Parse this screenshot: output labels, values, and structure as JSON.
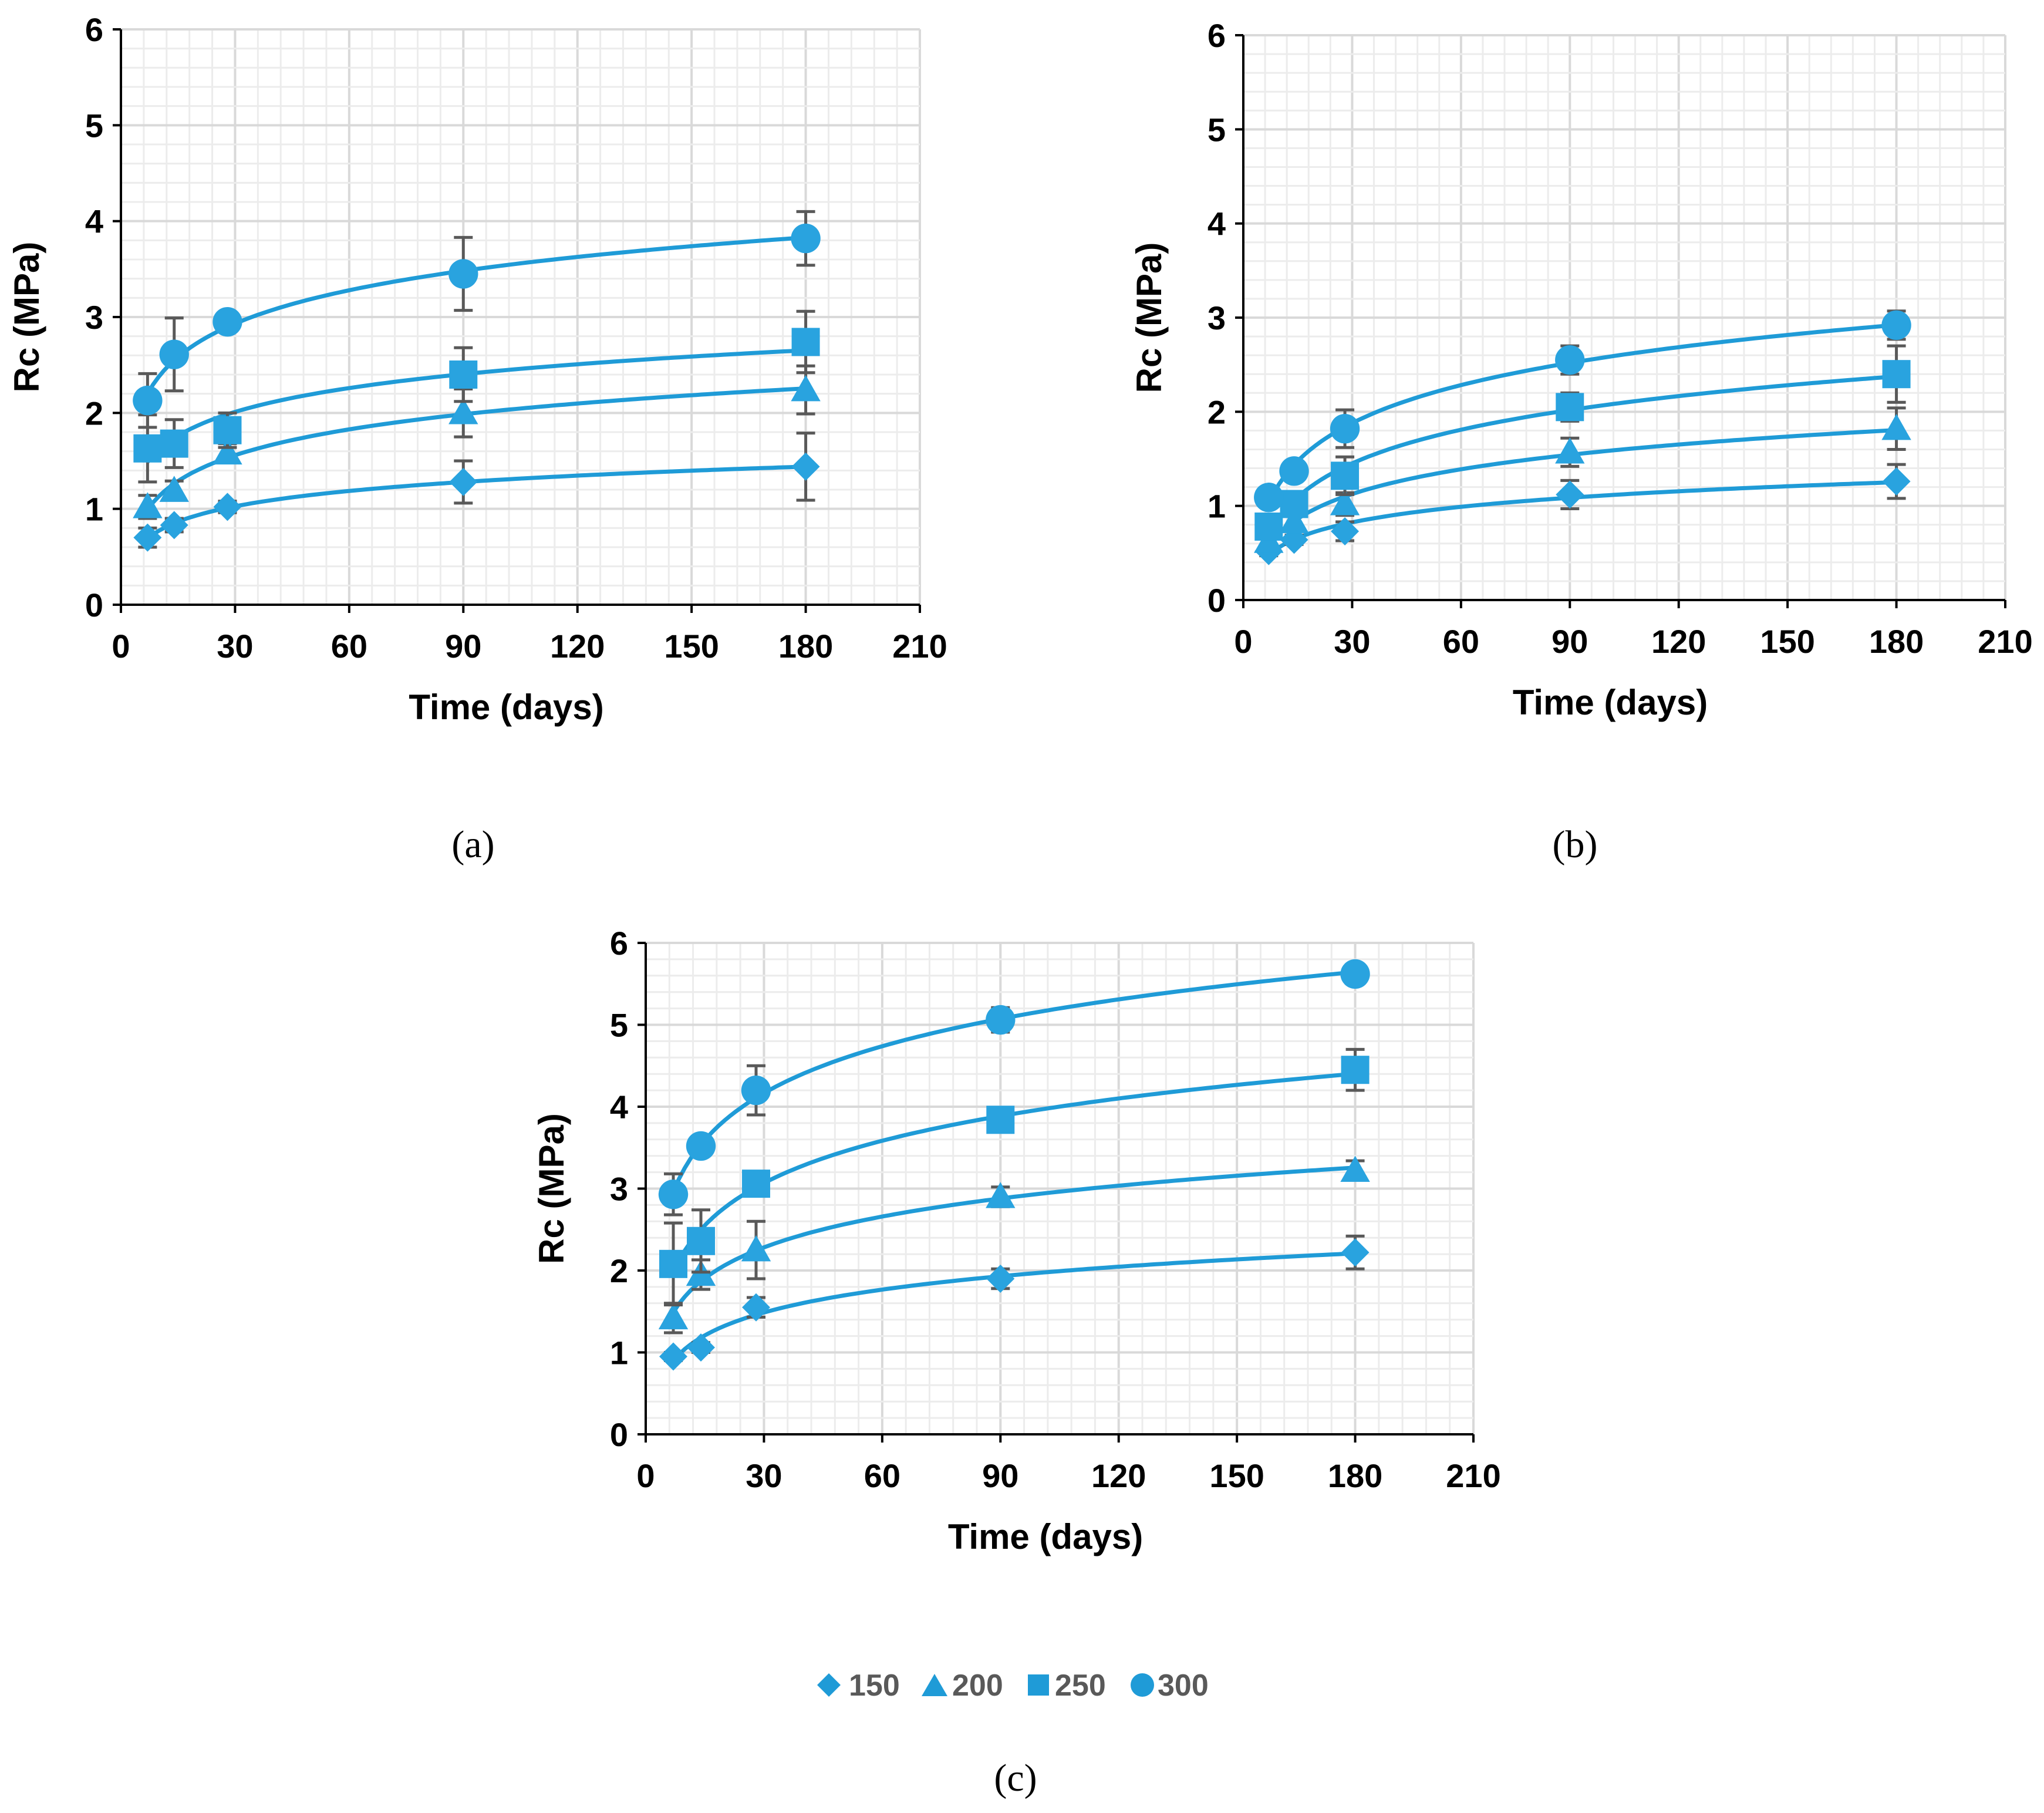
{
  "colors": {
    "series": "#1f9bd7",
    "series_marker": "#29a3df",
    "error_bar": "#595959",
    "grid_major": "#d9d9d9",
    "grid_minor": "#ececec",
    "axis": "#000000"
  },
  "legend": {
    "position": "bottom-center",
    "items": [
      {
        "label": "150",
        "marker": "diamond"
      },
      {
        "label": "200",
        "marker": "triangle"
      },
      {
        "label": "250",
        "marker": "square"
      },
      {
        "label": "300",
        "marker": "circle"
      }
    ]
  },
  "chart_data": [
    {
      "type": "scatter",
      "panel_label": "(a)",
      "xlabel": "Time (days)",
      "ylabel": "Rc (MPa)",
      "xlim": [
        0,
        210
      ],
      "ylim": [
        0,
        6
      ],
      "xticks": [
        "0",
        "30",
        "60",
        "90",
        "120",
        "150",
        "180",
        "210"
      ],
      "yticks": [
        "0",
        "1",
        "2",
        "3",
        "4",
        "5",
        "6"
      ],
      "grid": true,
      "trendline": "logarithmic",
      "x": [
        7,
        14,
        28,
        90,
        180
      ],
      "series": [
        {
          "name": "150",
          "marker": "diamond",
          "values": [
            0.7,
            0.83,
            1.02,
            1.28,
            1.44
          ],
          "errors": [
            0.1,
            0.07,
            0.06,
            0.22,
            0.35
          ]
        },
        {
          "name": "200",
          "marker": "triangle",
          "values": [
            1.02,
            1.19,
            1.58,
            2.0,
            2.24
          ],
          "errors": [
            0.12,
            0.1,
            0.1,
            0.25,
            0.25
          ]
        },
        {
          "name": "250",
          "marker": "square",
          "values": [
            1.63,
            1.68,
            1.82,
            2.4,
            2.74
          ],
          "errors": [
            0.35,
            0.25,
            0.18,
            0.28,
            0.32
          ]
        },
        {
          "name": "300",
          "marker": "circle",
          "values": [
            2.13,
            2.61,
            2.95,
            3.45,
            3.82
          ],
          "errors": [
            0.28,
            0.38,
            0.08,
            0.38,
            0.28
          ]
        }
      ]
    },
    {
      "type": "scatter",
      "panel_label": "(b)",
      "xlabel": "Time (days)",
      "ylabel": "Rc (MPa)",
      "xlim": [
        0,
        210
      ],
      "ylim": [
        0,
        6
      ],
      "xticks": [
        "0",
        "30",
        "60",
        "90",
        "120",
        "150",
        "180",
        "210"
      ],
      "yticks": [
        "0",
        "1",
        "2",
        "3",
        "4",
        "5",
        "6"
      ],
      "grid": true,
      "trendline": "logarithmic",
      "x": [
        7,
        14,
        28,
        90,
        180
      ],
      "series": [
        {
          "name": "150",
          "marker": "diamond",
          "values": [
            0.52,
            0.64,
            0.73,
            1.12,
            1.26
          ],
          "errors": [
            0.05,
            0.05,
            0.1,
            0.15,
            0.18
          ]
        },
        {
          "name": "200",
          "marker": "triangle",
          "values": [
            0.62,
            0.83,
            1.02,
            1.57,
            1.82
          ],
          "errors": [
            0.06,
            0.08,
            0.12,
            0.15,
            0.22
          ]
        },
        {
          "name": "250",
          "marker": "square",
          "values": [
            0.78,
            1.02,
            1.32,
            2.05,
            2.4
          ],
          "errors": [
            0.08,
            0.1,
            0.2,
            0.15,
            0.3
          ]
        },
        {
          "name": "300",
          "marker": "circle",
          "values": [
            1.09,
            1.37,
            1.82,
            2.55,
            2.92
          ],
          "errors": [
            0.08,
            0.1,
            0.2,
            0.15,
            0.15
          ]
        }
      ]
    },
    {
      "type": "scatter",
      "panel_label": "(c)",
      "xlabel": "Time (days)",
      "ylabel": "Rc (MPa)",
      "xlim": [
        0,
        210
      ],
      "ylim": [
        0,
        6
      ],
      "xticks": [
        "0",
        "30",
        "60",
        "90",
        "120",
        "150",
        "180",
        "210"
      ],
      "yticks": [
        "0",
        "1",
        "2",
        "3",
        "4",
        "5",
        "6"
      ],
      "grid": true,
      "trendline": "logarithmic",
      "x": [
        7,
        14,
        28,
        90,
        180
      ],
      "series": [
        {
          "name": "150",
          "marker": "diamond",
          "values": [
            0.95,
            1.06,
            1.55,
            1.9,
            2.22
          ],
          "errors": [
            0.05,
            0.06,
            0.12,
            0.12,
            0.2
          ]
        },
        {
          "name": "200",
          "marker": "triangle",
          "values": [
            1.42,
            1.95,
            2.25,
            2.9,
            3.22
          ],
          "errors": [
            0.18,
            0.18,
            0.35,
            0.12,
            0.12
          ]
        },
        {
          "name": "250",
          "marker": "square",
          "values": [
            2.08,
            2.36,
            3.06,
            3.84,
            4.45
          ],
          "errors": [
            0.5,
            0.38,
            0.08,
            0.1,
            0.25
          ]
        },
        {
          "name": "300",
          "marker": "circle",
          "values": [
            2.93,
            3.52,
            4.2,
            5.06,
            5.62
          ],
          "errors": [
            0.25,
            0.08,
            0.3,
            0.15,
            0.05
          ]
        }
      ]
    }
  ]
}
